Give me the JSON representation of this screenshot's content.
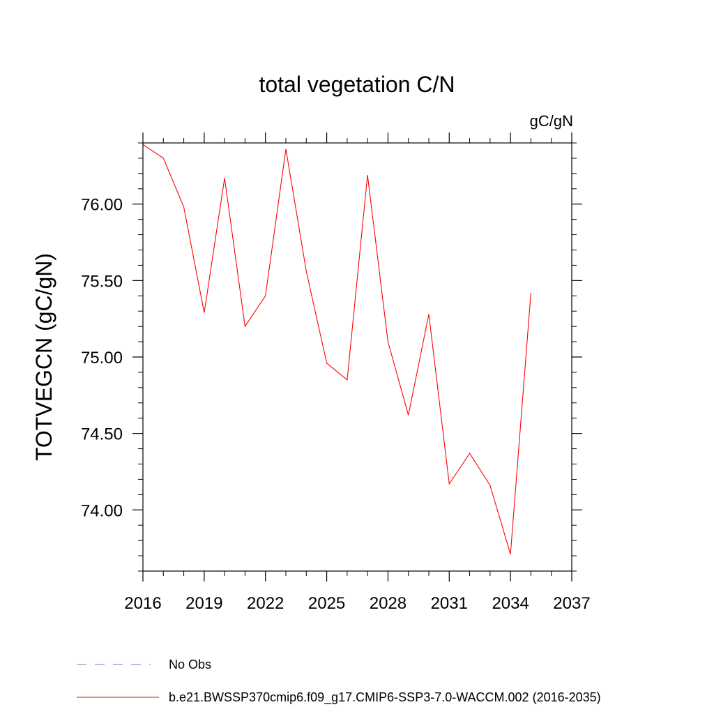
{
  "chart_data": {
    "type": "line",
    "title": "total vegetation C/N",
    "units_label": "gC/gN",
    "ylabel": "TOTVEGCN  (gC/gN)",
    "xlabel": "",
    "xlim": [
      2016,
      2037
    ],
    "ylim": [
      73.6,
      76.4
    ],
    "x_ticks": [
      2016,
      2019,
      2022,
      2025,
      2028,
      2031,
      2034,
      2037
    ],
    "y_ticks": [
      "74.00",
      "74.50",
      "75.00",
      "75.50",
      "76.00"
    ],
    "grid": false,
    "series": [
      {
        "name": "b.e21.BWSSP370cmip6.f09_g17.CMIP6-SSP3-7.0-WACCM.002 (2016-2035)",
        "color": "#ff0000",
        "style": "solid",
        "x": [
          2016,
          2017,
          2018,
          2019,
          2020,
          2021,
          2022,
          2023,
          2024,
          2025,
          2026,
          2027,
          2028,
          2029,
          2030,
          2031,
          2032,
          2033,
          2034,
          2035
        ],
        "y": [
          76.39,
          76.3,
          75.98,
          75.29,
          76.17,
          75.2,
          75.4,
          76.36,
          75.56,
          74.96,
          74.85,
          76.19,
          75.1,
          74.62,
          75.28,
          74.17,
          74.37,
          74.16,
          73.71,
          75.42
        ]
      }
    ],
    "legend": {
      "position": "bottom",
      "entries": [
        {
          "label": "No Obs",
          "color": "#7777bb",
          "style": "dashed"
        },
        {
          "label": "b.e21.BWSSP370cmip6.f09_g17.CMIP6-SSP3-7.0-WACCM.002 (2016-2035)",
          "color": "#ff0000",
          "style": "solid"
        }
      ]
    }
  }
}
